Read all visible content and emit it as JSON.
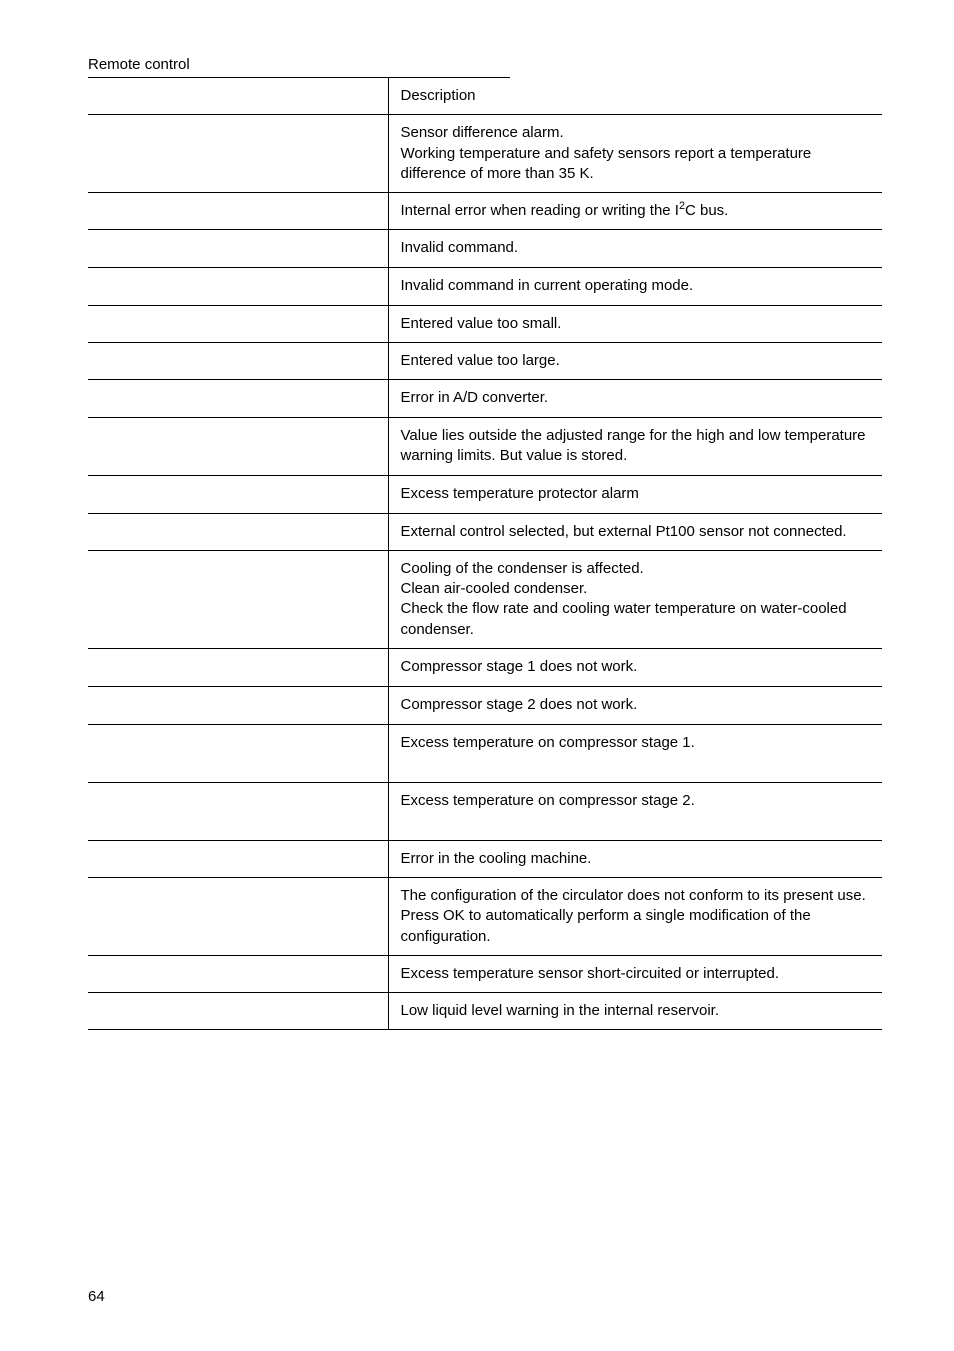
{
  "header": {
    "section_title": "Remote control"
  },
  "table": {
    "header_right": "Description",
    "rows": [
      {
        "desc": "Sensor difference alarm.\nWorking temperature and safety sensors report a temperature difference of more than 35 K."
      },
      {
        "desc": "Internal error when reading or writing the I²C bus."
      },
      {
        "desc": "Invalid command."
      },
      {
        "desc": "Invalid command in current operating mode."
      },
      {
        "desc": "Entered value too small."
      },
      {
        "desc": "Entered value too large."
      },
      {
        "desc": "Error in A/D converter."
      },
      {
        "desc": "Value lies outside the adjusted range for the high and low temperature warning limits. But value is stored."
      },
      {
        "desc": "Excess temperature protector alarm"
      },
      {
        "desc": "External control selected, but external Pt100 sensor not connected."
      },
      {
        "desc": "Cooling of the condenser is affected.\nClean air-cooled condenser.\nCheck the flow rate and cooling water temperature on water-cooled condenser."
      },
      {
        "desc": "Compressor stage 1 does not work."
      },
      {
        "desc": "Compressor stage 2 does not work."
      },
      {
        "desc": "Excess temperature on compressor stage 1."
      },
      {
        "desc": "Excess temperature on compressor stage 2."
      },
      {
        "desc": "Error in the cooling machine."
      },
      {
        "desc": "The configuration of the circulator does not conform to its present use.\nPress OK to automatically perform a single modification of the configuration."
      },
      {
        "desc": "Excess temperature sensor short-circuited or interrupted."
      },
      {
        "desc": "Low liquid level warning in the internal reservoir."
      }
    ]
  },
  "row_heights": {
    "r3": 38,
    "r4": 38,
    "r5": 38,
    "r6": 38,
    "r8": 38,
    "r11": 38,
    "r12": 38,
    "r13": 58,
    "r14": 58,
    "r15": 30
  },
  "footer": {
    "page_number": "64"
  }
}
